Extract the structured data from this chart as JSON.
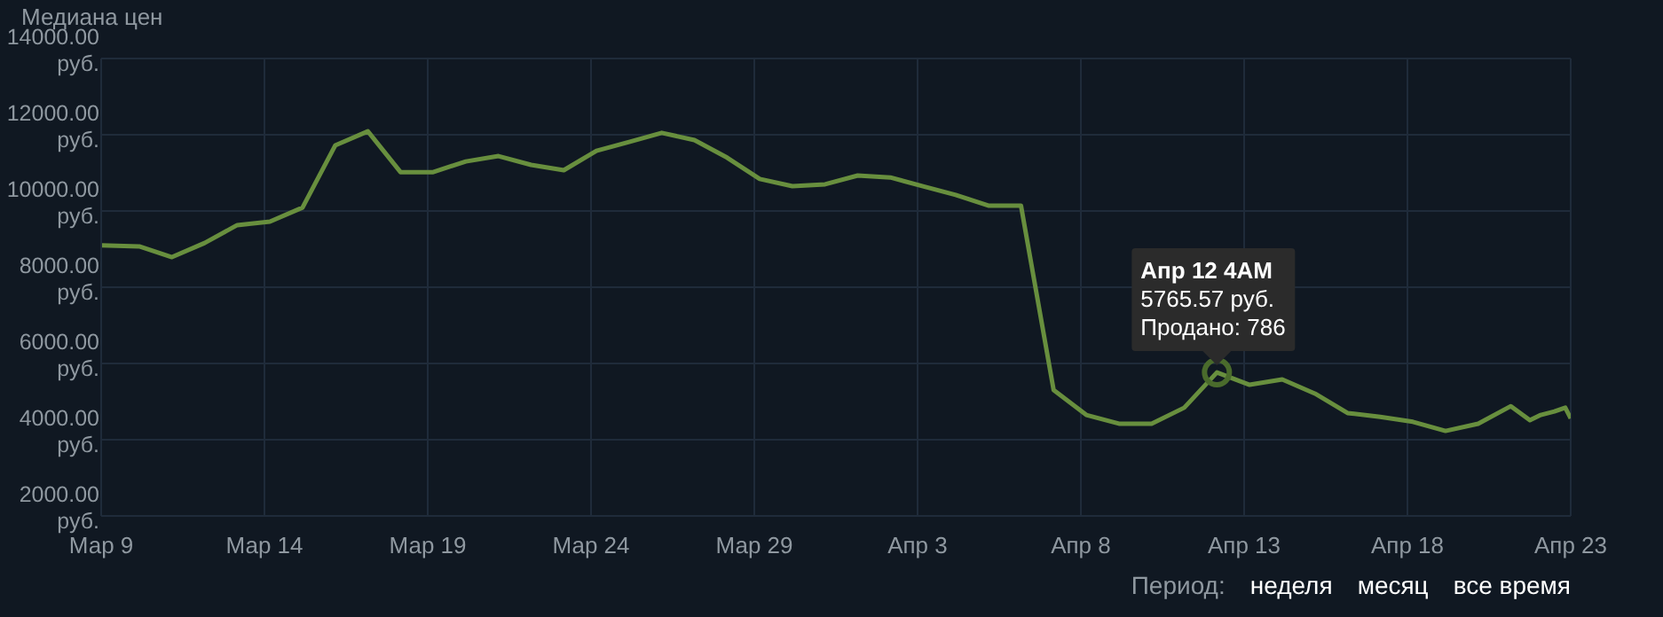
{
  "chart_data": {
    "type": "line",
    "title": "Медиана цен",
    "x": [
      "--03-09T00:00",
      "--03-10T04:00",
      "--03-11T04:00",
      "--03-12T04:00",
      "--03-13T04:00",
      "--03-14T04:00",
      "--03-15T04:00",
      "--03-16T04:00",
      "--03-17T04:00",
      "--03-18T04:00",
      "--03-19T04:00",
      "--03-20T04:00",
      "--03-21T04:00",
      "--03-22T04:00",
      "--03-23T04:00",
      "--03-24T04:00",
      "--03-25T04:00",
      "--03-26T04:00",
      "--03-27T04:00",
      "--03-28T04:00",
      "--03-29T04:00",
      "--03-30T04:00",
      "--03-31T04:00",
      "--04-01T04:00",
      "--04-02T04:00",
      "--04-03T04:00",
      "--04-04T04:00",
      "--04-05T04:00",
      "--04-06T04:00",
      "--04-07T04:00",
      "--04-08T04:00",
      "--04-09T04:00",
      "--04-10T04:00",
      "--04-11T04:00",
      "--04-12T04:00",
      "--04-13T04:00",
      "--04-14T04:00",
      "--04-15T04:00",
      "--04-16T04:00",
      "--04-17T04:00",
      "--04-18T04:00",
      "--04-19T04:00",
      "--04-20T04:00",
      "--04-21T04:00",
      "--04-21T18:00",
      "--04-22T02:00",
      "--04-22T12:00",
      "--04-22T20:00",
      "--04-23T00:00"
    ],
    "series": [
      {
        "color": "#688f3e",
        "values": [
          9100,
          9070,
          8790,
          9160,
          9630,
          9720,
          10090,
          11720,
          12090,
          11020,
          11020,
          11300,
          11440,
          11210,
          11070,
          11580,
          11810,
          12050,
          11860,
          11400,
          10840,
          10650,
          10700,
          10930,
          10880,
          10650,
          10420,
          10140,
          10140,
          5300,
          4650,
          4420,
          4420,
          4840,
          5765.57,
          5440,
          5580,
          5210,
          4700,
          4600,
          4470,
          4230,
          4420,
          4880,
          4510,
          4650,
          4740,
          4840,
          4560
        ]
      }
    ],
    "xlim": [
      "--03-09",
      "--04-23"
    ],
    "xticks": [
      {
        "value": "--03-09",
        "label": "Мар 9"
      },
      {
        "value": "--03-14",
        "label": "Мар 14"
      },
      {
        "value": "--03-19",
        "label": "Мар 19"
      },
      {
        "value": "--03-24",
        "label": "Мар 24"
      },
      {
        "value": "--03-29",
        "label": "Мар 29"
      },
      {
        "value": "--04-03",
        "label": "Апр 3"
      },
      {
        "value": "--04-08",
        "label": "Апр 8"
      },
      {
        "value": "--04-13",
        "label": "Апр 13"
      },
      {
        "value": "--04-18",
        "label": "Апр 18"
      },
      {
        "value": "--04-23",
        "label": "Апр 23"
      }
    ],
    "ylim": [
      2000,
      14000
    ],
    "yticks": [
      {
        "value": 2000,
        "label": "2000.00 руб."
      },
      {
        "value": 4000,
        "label": "4000.00 руб."
      },
      {
        "value": 6000,
        "label": "6000.00 руб."
      },
      {
        "value": 8000,
        "label": "8000.00 руб."
      },
      {
        "value": 10000,
        "label": "10000.00 руб."
      },
      {
        "value": 12000,
        "label": "12000.00 руб."
      },
      {
        "value": 14000,
        "label": "14000.00 руб."
      }
    ],
    "grid": true,
    "legend": false,
    "marker": "none",
    "line_style": "solid",
    "annotations": [
      {
        "text": "Апр 12 4AM\n5765.57 руб.\nПродано: 786",
        "x": "--04-12T04:00",
        "y": 5765.57
      },
      "Период:",
      "неделя",
      "месяц",
      "все время"
    ]
  }
}
